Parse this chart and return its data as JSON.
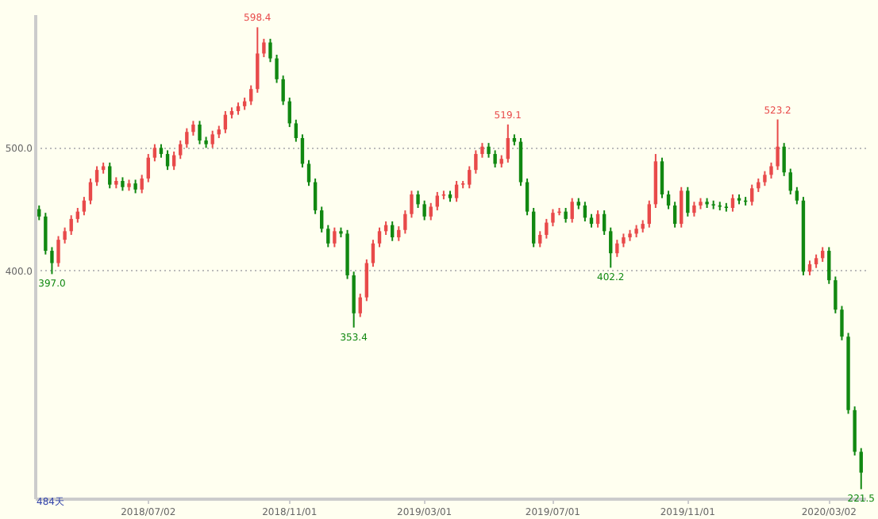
{
  "chart_data": {
    "type": "candlestick",
    "categories": [
      null,
      null,
      null,
      null,
      null,
      null,
      null,
      null,
      null,
      null,
      null,
      null,
      null,
      null,
      null,
      null,
      null,
      "2018/07/02",
      null,
      null,
      null,
      null,
      null,
      null,
      null,
      null,
      null,
      null,
      null,
      null,
      null,
      null,
      null,
      null,
      null,
      null,
      null,
      null,
      null,
      "2018/11/01",
      null,
      null,
      null,
      null,
      null,
      null,
      null,
      null,
      null,
      null,
      null,
      null,
      null,
      null,
      null,
      null,
      null,
      null,
      null,
      null,
      "2019/03/01",
      null,
      null,
      null,
      null,
      null,
      null,
      null,
      null,
      null,
      null,
      null,
      null,
      null,
      null,
      null,
      null,
      null,
      null,
      null,
      "2019/07/01",
      null,
      null,
      null,
      null,
      null,
      null,
      null,
      null,
      null,
      null,
      null,
      null,
      null,
      null,
      null,
      null,
      null,
      null,
      null,
      null,
      "2019/11/01",
      null,
      null,
      null,
      null,
      null,
      null,
      null,
      null,
      null,
      null,
      null,
      null,
      null,
      null,
      null,
      null,
      null,
      null,
      null,
      null,
      null,
      "2020/03/02",
      null,
      null,
      null,
      null,
      null
    ],
    "ohlc": [
      [
        450,
        453,
        441,
        444
      ],
      [
        444,
        447,
        413,
        416
      ],
      [
        416,
        419,
        397.0,
        406
      ],
      [
        406,
        428,
        403,
        425
      ],
      [
        425,
        435,
        422,
        432
      ],
      [
        432,
        445,
        429,
        442
      ],
      [
        442,
        451,
        439,
        448
      ],
      [
        448,
        460,
        445,
        457
      ],
      [
        457,
        475,
        454,
        472
      ],
      [
        472,
        485,
        469,
        482
      ],
      [
        482,
        488,
        479,
        485
      ],
      [
        485,
        488,
        467,
        470
      ],
      [
        470,
        476,
        467,
        473
      ],
      [
        473,
        476,
        465,
        468
      ],
      [
        468,
        474,
        465,
        471
      ],
      [
        471,
        474,
        463,
        466
      ],
      [
        466,
        478,
        463,
        475
      ],
      [
        475,
        495,
        472,
        492
      ],
      [
        492,
        503,
        489,
        500
      ],
      [
        500,
        503,
        492,
        495
      ],
      [
        495,
        498,
        482,
        485
      ],
      [
        485,
        497,
        482,
        494
      ],
      [
        494,
        506,
        491,
        503
      ],
      [
        503,
        516,
        500,
        513
      ],
      [
        513,
        522,
        510,
        519
      ],
      [
        519,
        522,
        503,
        506
      ],
      [
        506,
        509,
        500,
        503
      ],
      [
        503,
        514,
        500,
        511
      ],
      [
        511,
        518,
        508,
        515
      ],
      [
        515,
        530,
        512,
        527
      ],
      [
        527,
        533,
        524,
        530
      ],
      [
        530,
        537,
        527,
        534
      ],
      [
        534,
        541,
        531,
        538
      ],
      [
        538,
        551,
        535,
        548
      ],
      [
        548,
        598.4,
        545,
        577
      ],
      [
        577,
        589,
        574,
        586
      ],
      [
        586,
        589,
        570,
        573
      ],
      [
        573,
        576,
        553,
        556
      ],
      [
        556,
        559,
        535,
        538
      ],
      [
        538,
        541,
        517,
        520
      ],
      [
        520,
        523,
        505,
        508
      ],
      [
        508,
        511,
        484,
        487
      ],
      [
        487,
        490,
        469,
        472
      ],
      [
        472,
        475,
        446,
        449
      ],
      [
        449,
        452,
        431,
        434
      ],
      [
        434,
        437,
        419,
        422
      ],
      [
        422,
        435,
        419,
        432
      ],
      [
        432,
        435,
        427,
        430
      ],
      [
        430,
        433,
        393,
        396
      ],
      [
        396,
        399,
        353.4,
        365
      ],
      [
        365,
        381,
        362,
        378
      ],
      [
        378,
        409,
        375,
        406
      ],
      [
        406,
        425,
        403,
        422
      ],
      [
        422,
        435,
        419,
        432
      ],
      [
        432,
        440,
        429,
        437
      ],
      [
        437,
        440,
        424,
        427
      ],
      [
        427,
        436,
        424,
        433
      ],
      [
        433,
        449,
        430,
        446
      ],
      [
        446,
        465,
        443,
        462
      ],
      [
        462,
        465,
        451,
        454
      ],
      [
        454,
        457,
        441,
        444
      ],
      [
        444,
        455,
        441,
        452
      ],
      [
        452,
        464,
        449,
        461
      ],
      [
        461,
        465,
        458,
        462
      ],
      [
        462,
        465,
        456,
        459
      ],
      [
        459,
        473,
        456,
        470
      ],
      [
        470,
        473,
        467,
        471
      ],
      [
        470,
        485,
        467,
        482
      ],
      [
        482,
        498,
        479,
        495
      ],
      [
        495,
        504,
        492,
        501
      ],
      [
        501,
        504,
        492,
        495
      ],
      [
        495,
        498,
        484,
        487
      ],
      [
        487,
        494,
        484,
        491
      ],
      [
        491,
        519.1,
        488,
        508
      ],
      [
        508,
        511,
        502,
        505
      ],
      [
        505,
        508,
        469,
        472
      ],
      [
        472,
        475,
        445,
        448
      ],
      [
        448,
        451,
        419,
        422
      ],
      [
        422,
        432,
        419,
        429
      ],
      [
        429,
        442,
        426,
        439
      ],
      [
        439,
        450,
        436,
        447
      ],
      [
        447,
        451,
        445,
        448
      ],
      [
        448,
        451,
        439,
        442
      ],
      [
        442,
        459,
        439,
        456
      ],
      [
        456,
        459,
        450,
        453
      ],
      [
        453,
        456,
        440,
        443
      ],
      [
        443,
        446,
        435,
        438
      ],
      [
        438,
        449,
        435,
        446
      ],
      [
        446,
        449,
        429,
        432
      ],
      [
        432,
        435,
        402.2,
        414
      ],
      [
        414,
        425,
        411,
        422
      ],
      [
        422,
        430,
        419,
        427
      ],
      [
        427,
        433,
        424,
        430
      ],
      [
        430,
        437,
        427,
        434
      ],
      [
        434,
        441,
        431,
        438
      ],
      [
        438,
        457,
        435,
        454
      ],
      [
        454,
        495,
        451,
        489
      ],
      [
        489,
        492,
        459,
        462
      ],
      [
        462,
        465,
        450,
        453
      ],
      [
        453,
        456,
        435,
        438
      ],
      [
        438,
        468,
        435,
        465
      ],
      [
        465,
        468,
        444,
        447
      ],
      [
        447,
        456,
        444,
        453
      ],
      [
        453,
        459,
        450,
        456
      ],
      [
        456,
        459,
        451,
        454
      ],
      [
        454,
        457,
        450,
        453
      ],
      [
        453,
        456,
        449,
        452
      ],
      [
        452,
        455,
        448,
        451
      ],
      [
        451,
        462,
        448,
        459
      ],
      [
        459,
        462,
        454,
        457
      ],
      [
        457,
        460,
        453,
        456
      ],
      [
        456,
        470,
        453,
        467
      ],
      [
        467,
        475,
        464,
        472
      ],
      [
        472,
        481,
        469,
        478
      ],
      [
        478,
        488,
        475,
        485
      ],
      [
        485,
        523.2,
        482,
        501
      ],
      [
        501,
        504,
        477,
        480
      ],
      [
        480,
        483,
        462,
        465
      ],
      [
        465,
        468,
        454,
        457
      ],
      [
        457,
        460,
        396,
        399
      ],
      [
        399,
        408,
        396,
        405
      ],
      [
        405,
        413,
        402,
        410
      ],
      [
        410,
        419,
        407,
        416
      ],
      [
        416,
        419,
        389,
        392
      ],
      [
        392,
        395,
        365,
        368
      ],
      [
        368,
        371,
        343,
        346
      ],
      [
        346,
        349,
        283,
        286
      ],
      [
        286,
        289,
        249,
        252
      ],
      [
        252,
        255,
        221.5,
        235
      ]
    ],
    "colors": [
      "#118811",
      "#118811",
      "#118811",
      "#e84a4a",
      "#e84a4a",
      "#e84a4a",
      "#e84a4a",
      "#e84a4a",
      "#e84a4a",
      "#e84a4a",
      "#e84a4a",
      "#118811",
      "#e84a4a",
      "#118811",
      "#e84a4a",
      "#118811",
      "#e84a4a",
      "#e84a4a",
      "#e84a4a",
      "#118811",
      "#118811",
      "#e84a4a",
      "#e84a4a",
      "#e84a4a",
      "#e84a4a",
      "#118811",
      "#118811",
      "#e84a4a",
      "#e84a4a",
      "#e84a4a",
      "#e84a4a",
      "#e84a4a",
      "#e84a4a",
      "#e84a4a",
      "#e84a4a",
      "#e84a4a",
      "#118811",
      "#118811",
      "#118811",
      "#118811",
      "#118811",
      "#118811",
      "#118811",
      "#118811",
      "#118811",
      "#118811",
      "#e84a4a",
      "#118811",
      "#118811",
      "#118811",
      "#e84a4a",
      "#e84a4a",
      "#e84a4a",
      "#e84a4a",
      "#e84a4a",
      "#118811",
      "#e84a4a",
      "#e84a4a",
      "#e84a4a",
      "#118811",
      "#118811",
      "#e84a4a",
      "#e84a4a",
      "#e84a4a",
      "#118811",
      "#e84a4a",
      "#e84a4a",
      "#e84a4a",
      "#e84a4a",
      "#e84a4a",
      "#118811",
      "#118811",
      "#e84a4a",
      "#e84a4a",
      "#118811",
      "#118811",
      "#118811",
      "#118811",
      "#e84a4a",
      "#e84a4a",
      "#e84a4a",
      "#e84a4a",
      "#118811",
      "#e84a4a",
      "#118811",
      "#118811",
      "#118811",
      "#e84a4a",
      "#118811",
      "#118811",
      "#e84a4a",
      "#e84a4a",
      "#e84a4a",
      "#e84a4a",
      "#e84a4a",
      "#e84a4a",
      "#e84a4a",
      "#118811",
      "#118811",
      "#118811",
      "#e84a4a",
      "#118811",
      "#e84a4a",
      "#e84a4a",
      "#118811",
      "#118811",
      "#118811",
      "#118811",
      "#e84a4a",
      "#118811",
      "#118811",
      "#e84a4a",
      "#e84a4a",
      "#e84a4a",
      "#e84a4a",
      "#e84a4a",
      "#118811",
      "#118811",
      "#118811",
      "#118811",
      "#e84a4a",
      "#e84a4a",
      "#e84a4a",
      "#118811",
      "#118811",
      "#118811",
      "#118811",
      "#118811",
      "#118811"
    ],
    "ylim": [
      214,
      609
    ],
    "yticks": [
      {
        "value": 400,
        "label": "400.0"
      },
      {
        "value": 500,
        "label": "500.0"
      }
    ],
    "grid": "y",
    "annotations": [
      {
        "text": "598.4",
        "y": 598.4
      },
      {
        "text": "397.0",
        "y": 397.0
      },
      {
        "text": "353.4",
        "y": 353.4
      },
      {
        "text": "519.1",
        "y": 519.1
      },
      {
        "text": "402.2",
        "y": 402.2
      },
      {
        "text": "523.2",
        "y": 523.2
      },
      {
        "text": "221.5",
        "y": 221.5
      },
      "484天"
    ]
  }
}
